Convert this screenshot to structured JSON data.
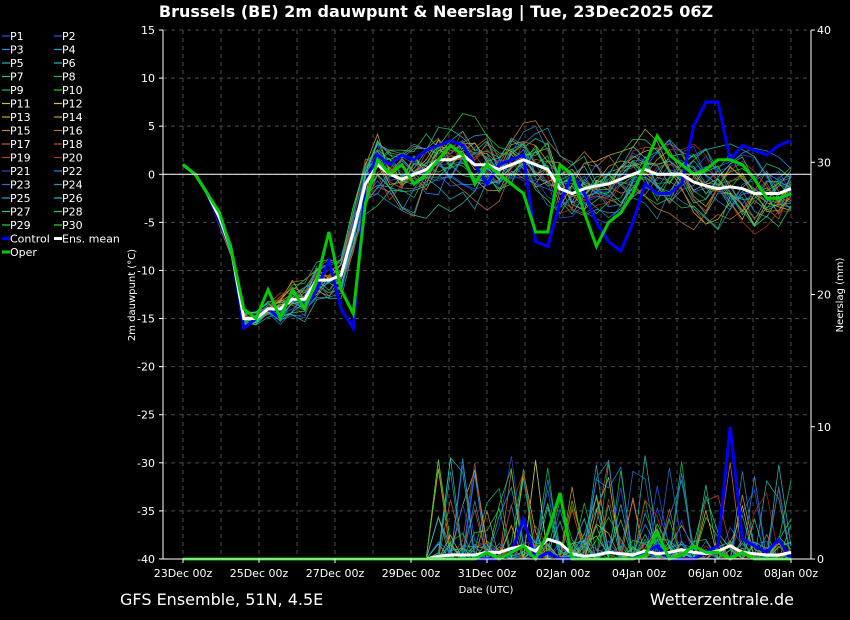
{
  "chart_data": {
    "type": "line",
    "title": "Brussels  (BE)  2m dauwpunt & Neerslag | Tue, 23Dec2025 06Z",
    "ylabel": "2m dauwpunt (°C)",
    "y2label": "Neerslag (mm)",
    "xlabel": "Date (UTC)",
    "ylim": [
      -40,
      15
    ],
    "y2lim": [
      0,
      40
    ],
    "yticks": [
      "15",
      "10",
      "5",
      "0",
      "-5",
      "-10",
      "-15",
      "-20",
      "-25",
      "-30",
      "-35",
      "-40"
    ],
    "y2ticks": [
      "40",
      "30",
      "20",
      "10",
      "0"
    ],
    "xticks": [
      "23Dec 00z",
      "25Dec 00z",
      "27Dec 00z",
      "29Dec 00z",
      "31Dec 00z",
      "02Jan 00z",
      "04Jan 00z",
      "06Jan 00z",
      "08Jan 00z"
    ],
    "grid": true,
    "legend_position": "left",
    "legend": [
      "P1",
      "P2",
      "P3",
      "P4",
      "P5",
      "P6",
      "P7",
      "P8",
      "P9",
      "P10",
      "P11",
      "P12",
      "P13",
      "P14",
      "P15",
      "P16",
      "P17",
      "P18",
      "P19",
      "P20",
      "P21",
      "P22",
      "P23",
      "P24",
      "P25",
      "P26",
      "P27",
      "P28",
      "P29",
      "P30",
      "Control",
      "Ens. mean",
      "Oper"
    ],
    "legend_colors": [
      "#2a55ff",
      "#2a55ff",
      "#1e90ff",
      "#2f9ad6",
      "#20b0c0",
      "#20c0b0",
      "#20c890",
      "#10c070",
      "#10c850",
      "#20d020",
      "#c8c020",
      "#d8c030",
      "#c8b020",
      "#d0a020",
      "#d08030",
      "#c87040",
      "#c06030",
      "#c05020",
      "#c04010",
      "#b03010",
      "#2a45e0",
      "#1e88e0",
      "#2a70d0",
      "#2a90c0",
      "#20a8d0",
      "#20c0c0",
      "#20c8a0",
      "#20d080",
      "#20d060",
      "#30e030",
      "#0000ff",
      "#ffffff",
      "#00cc00"
    ],
    "members_count": 30,
    "series": [
      {
        "name": "Control",
        "values": [
          1,
          0,
          -2,
          -5,
          -8,
          -16,
          -15,
          -14,
          -15,
          -12,
          -14,
          -12,
          -9,
          -14,
          -16,
          -1,
          2,
          1,
          2,
          1.5,
          2.5,
          3,
          3.5,
          3,
          1,
          -1,
          1,
          1.5,
          2,
          -7,
          -7.5,
          -3,
          0,
          -2,
          -5,
          -7,
          -8,
          -5,
          -1,
          -2,
          -2,
          -1,
          5,
          7.5,
          7.5,
          1.5,
          3,
          2.5,
          2,
          3,
          3.5
        ],
        "precip": [
          0,
          0,
          0,
          0,
          0,
          0,
          0,
          0,
          0,
          0,
          0,
          0,
          0,
          0,
          0,
          0,
          0,
          0,
          0,
          0,
          0,
          0,
          0,
          0,
          0,
          0,
          0,
          0.5,
          3,
          0,
          0.5,
          0,
          0,
          0,
          0,
          0,
          0,
          0,
          0.5,
          1,
          0,
          0,
          0,
          0.5,
          1,
          10,
          1.5,
          1,
          0.5,
          1.5,
          0
        ]
      },
      {
        "name": "Ens. mean",
        "values": [
          1,
          0,
          -2,
          -4.5,
          -8,
          -15,
          -15,
          -14,
          -14,
          -13,
          -13,
          -11,
          -11,
          -10.5,
          -6,
          -1,
          1,
          0,
          -0.5,
          0,
          0.5,
          1.5,
          1.5,
          2,
          1,
          1,
          0.5,
          1,
          1.5,
          1,
          0.5,
          -1.5,
          -2,
          -1.5,
          -1.2,
          -1,
          -0.5,
          0,
          0.5,
          0,
          0,
          0,
          -0.8,
          -1.2,
          -1.5,
          -1.3,
          -1.5,
          -2,
          -2,
          -2,
          -1.5
        ],
        "precip": [
          0,
          0,
          0,
          0,
          0,
          0,
          0,
          0,
          0,
          0,
          0,
          0,
          0,
          0,
          0,
          0,
          0,
          0,
          0,
          0,
          0,
          0.2,
          0.3,
          0.3,
          0.3,
          0.5,
          0.5,
          0.8,
          1,
          0.6,
          1.5,
          1.2,
          0.4,
          0.2,
          0.3,
          0.5,
          0.4,
          0.3,
          0.6,
          0.4,
          0.5,
          0.7,
          0.5,
          0.4,
          0.6,
          1,
          0.5,
          0.4,
          0.3,
          0.3,
          0.5
        ]
      },
      {
        "name": "Oper",
        "values": [
          1,
          0,
          -2,
          -4,
          -8,
          -14,
          -15,
          -12,
          -15,
          -12,
          -14,
          -11,
          -6,
          -12,
          -14.5,
          -3,
          1.5,
          0,
          1,
          -1,
          0,
          1.5,
          3,
          2,
          -1,
          1,
          0,
          -1,
          -2,
          -6,
          -6,
          1,
          0,
          -4,
          -7.5,
          -5,
          -4,
          -2,
          1,
          4,
          2,
          1,
          0,
          0.5,
          1.5,
          1.5,
          1,
          -0.5,
          -2.5,
          -2.5,
          -2
        ],
        "precip": [
          0,
          0,
          0,
          0,
          0,
          0,
          0,
          0,
          0,
          0,
          0,
          0,
          0,
          0,
          0,
          0,
          0,
          0,
          0,
          0,
          0,
          0,
          0,
          0,
          0,
          0.5,
          0,
          0.5,
          1,
          0,
          2,
          5,
          0,
          0,
          0,
          0,
          0,
          0,
          0.3,
          2,
          0,
          0.3,
          1,
          0.5,
          0.5,
          0,
          0.5,
          0,
          0,
          0,
          0
        ]
      }
    ]
  },
  "footer": {
    "left": "GFS Ensemble, 51N, 4.5E",
    "right": "Wetterzentrale.de"
  }
}
